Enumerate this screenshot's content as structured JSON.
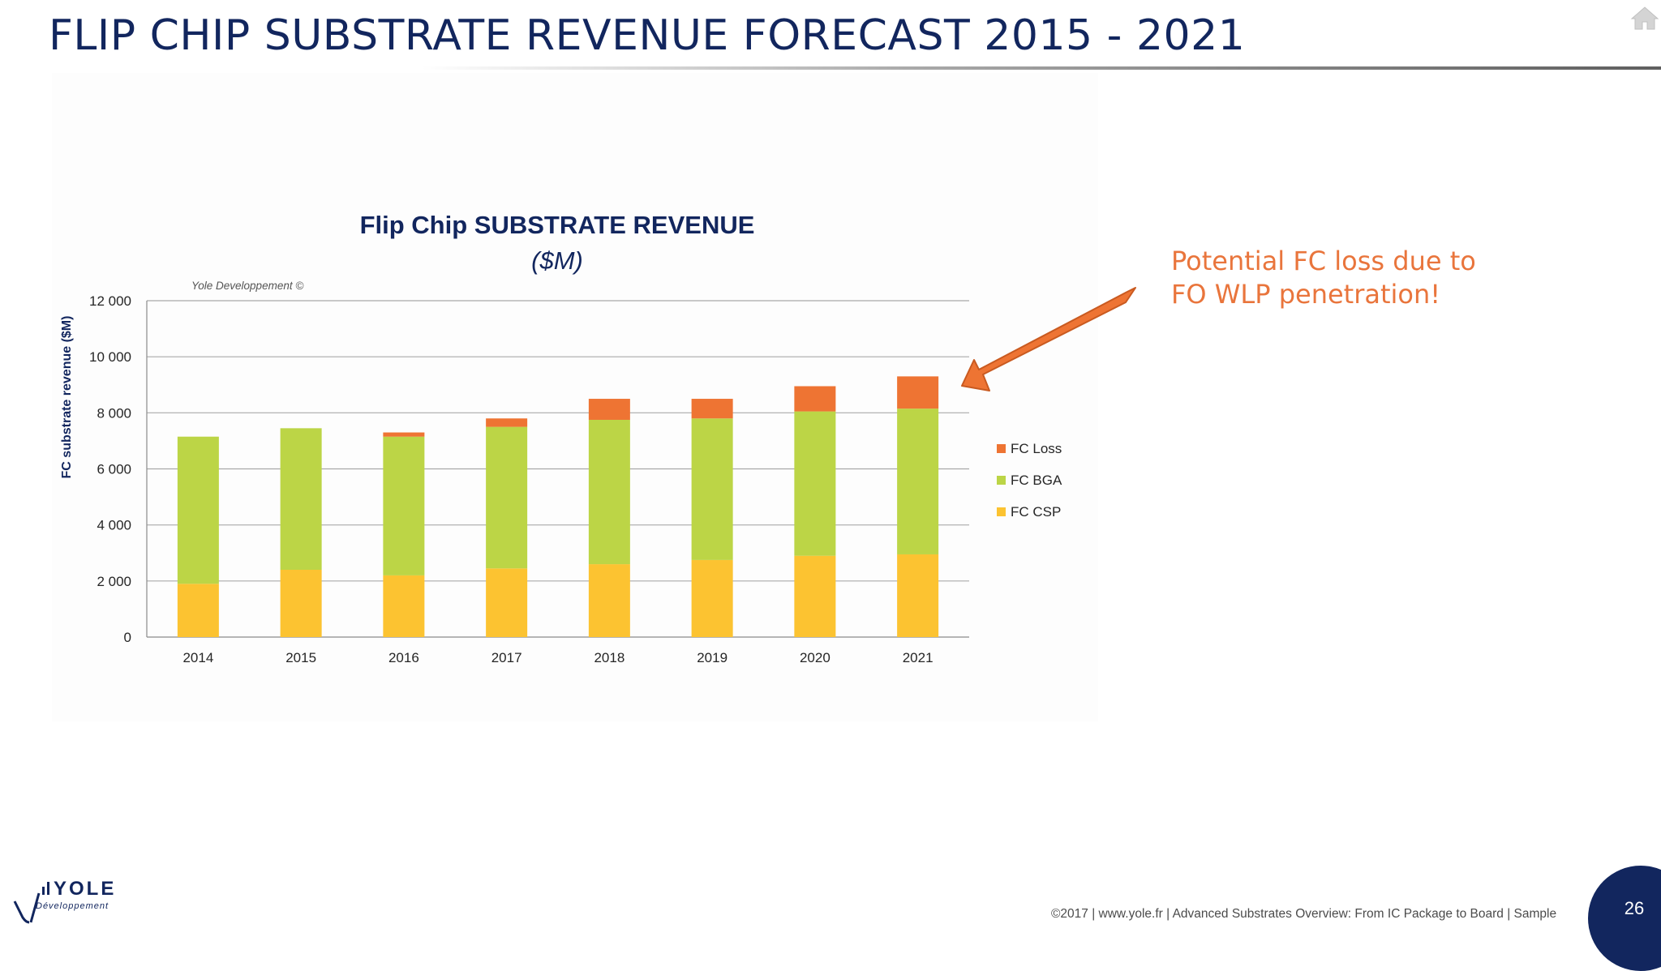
{
  "slide": {
    "title": "FLIP CHIP SUBSTRATE REVENUE FORECAST 2015 - 2021",
    "annotation": "Potential FC loss due to FO WLP penetration!",
    "footer": "©2017  |  www.yole.fr  |  Advanced Substrates Overview: From IC Package to Board  |  Sample",
    "page_number": "26",
    "home_icon": "home-icon",
    "logo": {
      "name": "YOLE",
      "sub": "Développement"
    },
    "colors": {
      "title": "#12265e",
      "annotation": "#e9753c",
      "arrow": "#ee7433",
      "badge": "#12265e"
    }
  },
  "chart_data": {
    "type": "bar",
    "stacked": true,
    "title": "Flip Chip SUBSTRATE REVENUE",
    "subtitle": "($M)",
    "watermark": "Yole Developpement ©",
    "ylabel": "FC substrate revenue ($M)",
    "xlabel": "",
    "ylim": [
      0,
      12000
    ],
    "yticks": [
      0,
      2000,
      4000,
      6000,
      8000,
      10000,
      12000
    ],
    "ytick_labels": [
      "0",
      "2 000",
      "4 000",
      "6 000",
      "8 000",
      "10 000",
      "12 000"
    ],
    "grid": true,
    "legend_position": "right",
    "categories": [
      "2014",
      "2015",
      "2016",
      "2017",
      "2018",
      "2019",
      "2020",
      "2021"
    ],
    "series": [
      {
        "name": "FC CSP",
        "color": "#fcc331",
        "values": [
          1900,
          2400,
          2200,
          2450,
          2600,
          2750,
          2900,
          2950
        ]
      },
      {
        "name": "FC BGA",
        "color": "#bcd546",
        "values": [
          5250,
          5050,
          4950,
          5050,
          5150,
          5050,
          5150,
          5200
        ]
      },
      {
        "name": "FC Loss",
        "color": "#ee7433",
        "values": [
          0,
          0,
          150,
          300,
          750,
          700,
          900,
          1150
        ]
      }
    ],
    "legend_order": [
      "FC Loss",
      "FC BGA",
      "FC CSP"
    ]
  }
}
